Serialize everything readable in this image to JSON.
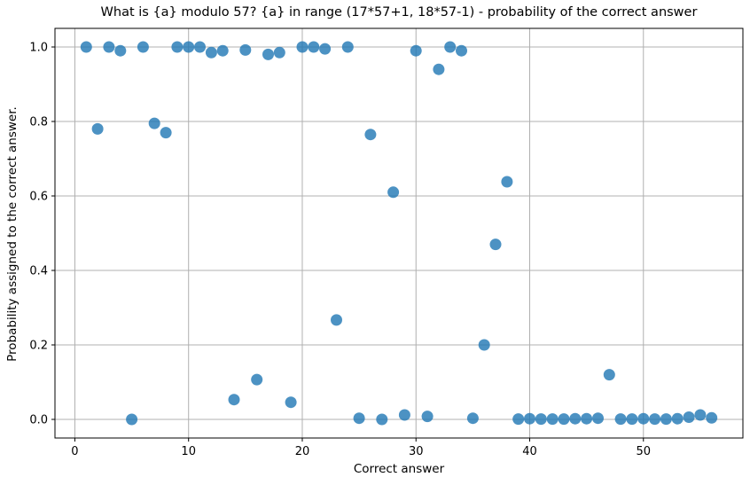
{
  "figure": {
    "title": "What is {a} modulo 57? {a} in range (17*57+1, 18*57-1) - probability of the correct answer",
    "xlabel": "Correct answer",
    "ylabel": "Probability assigned to the correct answer."
  },
  "chart_data": {
    "type": "scatter",
    "title": "What is {a} modulo 57? {a} in range (17*57+1, 18*57-1) - probability of the correct answer",
    "xlabel": "Correct answer",
    "ylabel": "Probability assigned to the correct answer.",
    "xlim": [
      -1.75,
      58.75
    ],
    "ylim": [
      -0.05,
      1.05
    ],
    "xticks": [
      0,
      10,
      20,
      30,
      40,
      50
    ],
    "yticks": [
      0.0,
      0.2,
      0.4,
      0.6,
      0.8,
      1.0
    ],
    "grid": true,
    "legend": "none",
    "marker_color": "#1f77b4",
    "marker_alpha": 0.8,
    "grid_color": "#b0b0b0",
    "points": [
      [
        1,
        1.0
      ],
      [
        2,
        0.78
      ],
      [
        3,
        1.0
      ],
      [
        4,
        0.99
      ],
      [
        5,
        0.0
      ],
      [
        6,
        1.0
      ],
      [
        7,
        0.795
      ],
      [
        8,
        0.77
      ],
      [
        9,
        1.0
      ],
      [
        10,
        1.0
      ],
      [
        11,
        1.0
      ],
      [
        12,
        0.985
      ],
      [
        13,
        0.99
      ],
      [
        14,
        0.053
      ],
      [
        15,
        0.992
      ],
      [
        16,
        0.107
      ],
      [
        17,
        0.98
      ],
      [
        18,
        0.985
      ],
      [
        19,
        0.046
      ],
      [
        20,
        1.0
      ],
      [
        21,
        1.0
      ],
      [
        22,
        0.995
      ],
      [
        23,
        0.267
      ],
      [
        24,
        1.0
      ],
      [
        25,
        0.003
      ],
      [
        26,
        0.765
      ],
      [
        27,
        0.0
      ],
      [
        28,
        0.61
      ],
      [
        29,
        0.012
      ],
      [
        30,
        0.99
      ],
      [
        31,
        0.008
      ],
      [
        32,
        0.94
      ],
      [
        33,
        1.0
      ],
      [
        34,
        0.99
      ],
      [
        35,
        0.003
      ],
      [
        36,
        0.2
      ],
      [
        37,
        0.47
      ],
      [
        38,
        0.638
      ],
      [
        39,
        0.001
      ],
      [
        40,
        0.002
      ],
      [
        41,
        0.001
      ],
      [
        42,
        0.001
      ],
      [
        43,
        0.001
      ],
      [
        44,
        0.002
      ],
      [
        45,
        0.002
      ],
      [
        46,
        0.003
      ],
      [
        47,
        0.12
      ],
      [
        48,
        0.001
      ],
      [
        49,
        0.001
      ],
      [
        50,
        0.002
      ],
      [
        51,
        0.001
      ],
      [
        52,
        0.001
      ],
      [
        53,
        0.002
      ],
      [
        54,
        0.006
      ],
      [
        55,
        0.012
      ],
      [
        56,
        0.004
      ]
    ]
  }
}
